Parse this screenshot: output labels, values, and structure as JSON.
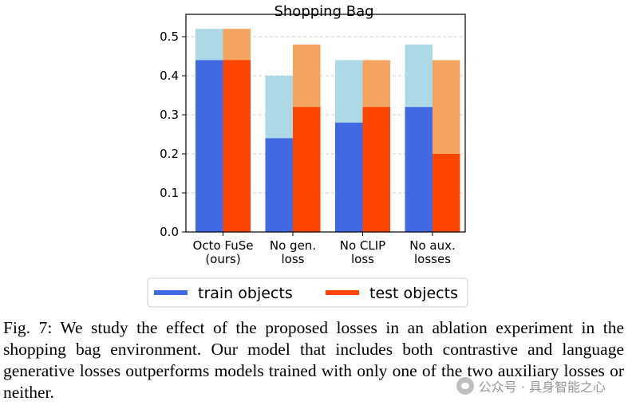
{
  "chart_data": {
    "type": "bar",
    "title": "Shopping Bag",
    "categories": [
      "Octo FuSe\n(ours)",
      "No gen.\nloss",
      "No CLIP\nloss",
      "No aux.\nlosses"
    ],
    "series": [
      {
        "name": "train objects",
        "values": [
          0.44,
          0.24,
          0.28,
          0.32
        ],
        "light_values": [
          0.52,
          0.4,
          0.44,
          0.48
        ],
        "color": "#4169e1",
        "light_color": "#add8e6"
      },
      {
        "name": "test objects",
        "values": [
          0.44,
          0.32,
          0.32,
          0.2
        ],
        "light_values": [
          0.52,
          0.48,
          0.44,
          0.44
        ],
        "color": "#ff4500",
        "light_color": "#f4a460"
      }
    ],
    "xlabel": "",
    "ylabel": "",
    "ylim": [
      0,
      0.55
    ],
    "yticks": [
      "0.0",
      "0.1",
      "0.2",
      "0.3",
      "0.4",
      "0.5"
    ],
    "grid": "horizontal-dashed",
    "legend": {
      "placement": "bottom",
      "labels": [
        "train objects",
        "test objects"
      ]
    }
  },
  "caption": "Fig. 7: We study the effect of the proposed losses in an ablation experiment in the shopping bag environment. Our model that includes both contrastive and language generative losses outperforms models trained with only one of the two auxiliary losses or neither.",
  "watermark": "公众号 · 具身智能之心"
}
